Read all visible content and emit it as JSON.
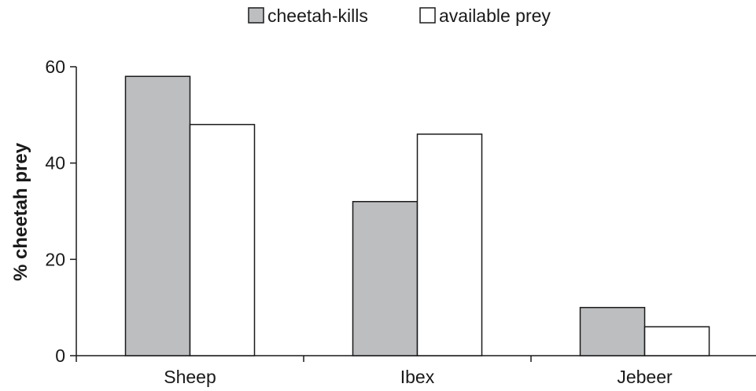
{
  "chart_data": {
    "type": "bar",
    "categories": [
      "Sheep",
      "Ibex",
      "Jebeer"
    ],
    "series": [
      {
        "name": "cheetah-kills",
        "values": [
          58,
          32,
          10
        ],
        "color": "#bcbec0"
      },
      {
        "name": "available prey",
        "values": [
          48,
          46,
          6
        ],
        "color": "#ffffff"
      }
    ],
    "title": "",
    "xlabel": "",
    "ylabel": "% cheetah prey",
    "ylim": [
      0,
      60
    ],
    "yticks": [
      0,
      20,
      40,
      60
    ],
    "grid": false,
    "legend_position": "top-center"
  }
}
